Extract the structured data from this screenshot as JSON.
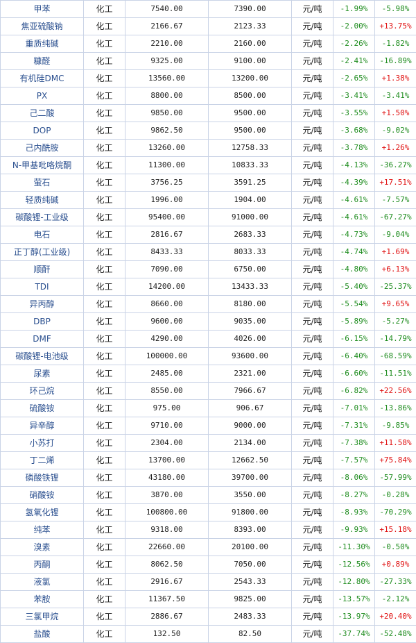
{
  "colors": {
    "name": "#2a4f8f",
    "negative": "#1e8c1e",
    "positive": "#e01010",
    "border": "#c9d3e6"
  },
  "rows": [
    {
      "name": "甲苯",
      "category": "化工",
      "price_a": "7540.00",
      "price_b": "7390.00",
      "unit": "元/吨",
      "change1": "-1.99%",
      "change2": "-5.98%"
    },
    {
      "name": "焦亚硫酸钠",
      "category": "化工",
      "price_a": "2166.67",
      "price_b": "2123.33",
      "unit": "元/吨",
      "change1": "-2.00%",
      "change2": "+13.75%"
    },
    {
      "name": "重质纯碱",
      "category": "化工",
      "price_a": "2210.00",
      "price_b": "2160.00",
      "unit": "元/吨",
      "change1": "-2.26%",
      "change2": "-1.82%"
    },
    {
      "name": "糠醛",
      "category": "化工",
      "price_a": "9325.00",
      "price_b": "9100.00",
      "unit": "元/吨",
      "change1": "-2.41%",
      "change2": "-16.89%"
    },
    {
      "name": "有机硅DMC",
      "category": "化工",
      "price_a": "13560.00",
      "price_b": "13200.00",
      "unit": "元/吨",
      "change1": "-2.65%",
      "change2": "+1.38%"
    },
    {
      "name": "PX",
      "category": "化工",
      "price_a": "8800.00",
      "price_b": "8500.00",
      "unit": "元/吨",
      "change1": "-3.41%",
      "change2": "-3.41%"
    },
    {
      "name": "己二酸",
      "category": "化工",
      "price_a": "9850.00",
      "price_b": "9500.00",
      "unit": "元/吨",
      "change1": "-3.55%",
      "change2": "+1.50%"
    },
    {
      "name": "DOP",
      "category": "化工",
      "price_a": "9862.50",
      "price_b": "9500.00",
      "unit": "元/吨",
      "change1": "-3.68%",
      "change2": "-9.02%"
    },
    {
      "name": "己内酰胺",
      "category": "化工",
      "price_a": "13260.00",
      "price_b": "12758.33",
      "unit": "元/吨",
      "change1": "-3.78%",
      "change2": "+1.26%"
    },
    {
      "name": "N-甲基吡咯烷酮",
      "category": "化工",
      "price_a": "11300.00",
      "price_b": "10833.33",
      "unit": "元/吨",
      "change1": "-4.13%",
      "change2": "-36.27%"
    },
    {
      "name": "萤石",
      "category": "化工",
      "price_a": "3756.25",
      "price_b": "3591.25",
      "unit": "元/吨",
      "change1": "-4.39%",
      "change2": "+17.51%"
    },
    {
      "name": "轻质纯碱",
      "category": "化工",
      "price_a": "1996.00",
      "price_b": "1904.00",
      "unit": "元/吨",
      "change1": "-4.61%",
      "change2": "-7.57%"
    },
    {
      "name": "碳酸锂-工业级",
      "category": "化工",
      "price_a": "95400.00",
      "price_b": "91000.00",
      "unit": "元/吨",
      "change1": "-4.61%",
      "change2": "-67.27%"
    },
    {
      "name": "电石",
      "category": "化工",
      "price_a": "2816.67",
      "price_b": "2683.33",
      "unit": "元/吨",
      "change1": "-4.73%",
      "change2": "-9.04%"
    },
    {
      "name": "正丁醇(工业级)",
      "category": "化工",
      "price_a": "8433.33",
      "price_b": "8033.33",
      "unit": "元/吨",
      "change1": "-4.74%",
      "change2": "+1.69%"
    },
    {
      "name": "顺酐",
      "category": "化工",
      "price_a": "7090.00",
      "price_b": "6750.00",
      "unit": "元/吨",
      "change1": "-4.80%",
      "change2": "+6.13%"
    },
    {
      "name": "TDI",
      "category": "化工",
      "price_a": "14200.00",
      "price_b": "13433.33",
      "unit": "元/吨",
      "change1": "-5.40%",
      "change2": "-25.37%"
    },
    {
      "name": "异丙醇",
      "category": "化工",
      "price_a": "8660.00",
      "price_b": "8180.00",
      "unit": "元/吨",
      "change1": "-5.54%",
      "change2": "+9.65%"
    },
    {
      "name": "DBP",
      "category": "化工",
      "price_a": "9600.00",
      "price_b": "9035.00",
      "unit": "元/吨",
      "change1": "-5.89%",
      "change2": "-5.27%"
    },
    {
      "name": "DMF",
      "category": "化工",
      "price_a": "4290.00",
      "price_b": "4026.00",
      "unit": "元/吨",
      "change1": "-6.15%",
      "change2": "-14.79%"
    },
    {
      "name": "碳酸锂-电池级",
      "category": "化工",
      "price_a": "100000.00",
      "price_b": "93600.00",
      "unit": "元/吨",
      "change1": "-6.40%",
      "change2": "-68.59%"
    },
    {
      "name": "尿素",
      "category": "化工",
      "price_a": "2485.00",
      "price_b": "2321.00",
      "unit": "元/吨",
      "change1": "-6.60%",
      "change2": "-11.51%"
    },
    {
      "name": "环己烷",
      "category": "化工",
      "price_a": "8550.00",
      "price_b": "7966.67",
      "unit": "元/吨",
      "change1": "-6.82%",
      "change2": "+22.56%"
    },
    {
      "name": "硫酸铵",
      "category": "化工",
      "price_a": "975.00",
      "price_b": "906.67",
      "unit": "元/吨",
      "change1": "-7.01%",
      "change2": "-13.86%"
    },
    {
      "name": "异辛醇",
      "category": "化工",
      "price_a": "9710.00",
      "price_b": "9000.00",
      "unit": "元/吨",
      "change1": "-7.31%",
      "change2": "-9.85%"
    },
    {
      "name": "小苏打",
      "category": "化工",
      "price_a": "2304.00",
      "price_b": "2134.00",
      "unit": "元/吨",
      "change1": "-7.38%",
      "change2": "+11.58%"
    },
    {
      "name": "丁二烯",
      "category": "化工",
      "price_a": "13700.00",
      "price_b": "12662.50",
      "unit": "元/吨",
      "change1": "-7.57%",
      "change2": "+75.84%"
    },
    {
      "name": "磷酸铁锂",
      "category": "化工",
      "price_a": "43180.00",
      "price_b": "39700.00",
      "unit": "元/吨",
      "change1": "-8.06%",
      "change2": "-57.99%"
    },
    {
      "name": "硝酸铵",
      "category": "化工",
      "price_a": "3870.00",
      "price_b": "3550.00",
      "unit": "元/吨",
      "change1": "-8.27%",
      "change2": "-0.28%"
    },
    {
      "name": "氢氧化锂",
      "category": "化工",
      "price_a": "100800.00",
      "price_b": "91800.00",
      "unit": "元/吨",
      "change1": "-8.93%",
      "change2": "-70.29%"
    },
    {
      "name": "纯苯",
      "category": "化工",
      "price_a": "9318.00",
      "price_b": "8393.00",
      "unit": "元/吨",
      "change1": "-9.93%",
      "change2": "+15.18%"
    },
    {
      "name": "溴素",
      "category": "化工",
      "price_a": "22660.00",
      "price_b": "20100.00",
      "unit": "元/吨",
      "change1": "-11.30%",
      "change2": "-0.50%"
    },
    {
      "name": "丙酮",
      "category": "化工",
      "price_a": "8062.50",
      "price_b": "7050.00",
      "unit": "元/吨",
      "change1": "-12.56%",
      "change2": "+0.89%"
    },
    {
      "name": "液氯",
      "category": "化工",
      "price_a": "2916.67",
      "price_b": "2543.33",
      "unit": "元/吨",
      "change1": "-12.80%",
      "change2": "-27.33%"
    },
    {
      "name": "苯胺",
      "category": "化工",
      "price_a": "11367.50",
      "price_b": "9825.00",
      "unit": "元/吨",
      "change1": "-13.57%",
      "change2": "-2.12%"
    },
    {
      "name": "三氯甲烷",
      "category": "化工",
      "price_a": "2886.67",
      "price_b": "2483.33",
      "unit": "元/吨",
      "change1": "-13.97%",
      "change2": "+20.40%"
    },
    {
      "name": "盐酸",
      "category": "化工",
      "price_a": "132.50",
      "price_b": "82.50",
      "unit": "元/吨",
      "change1": "-37.74%",
      "change2": "-52.48%"
    }
  ]
}
